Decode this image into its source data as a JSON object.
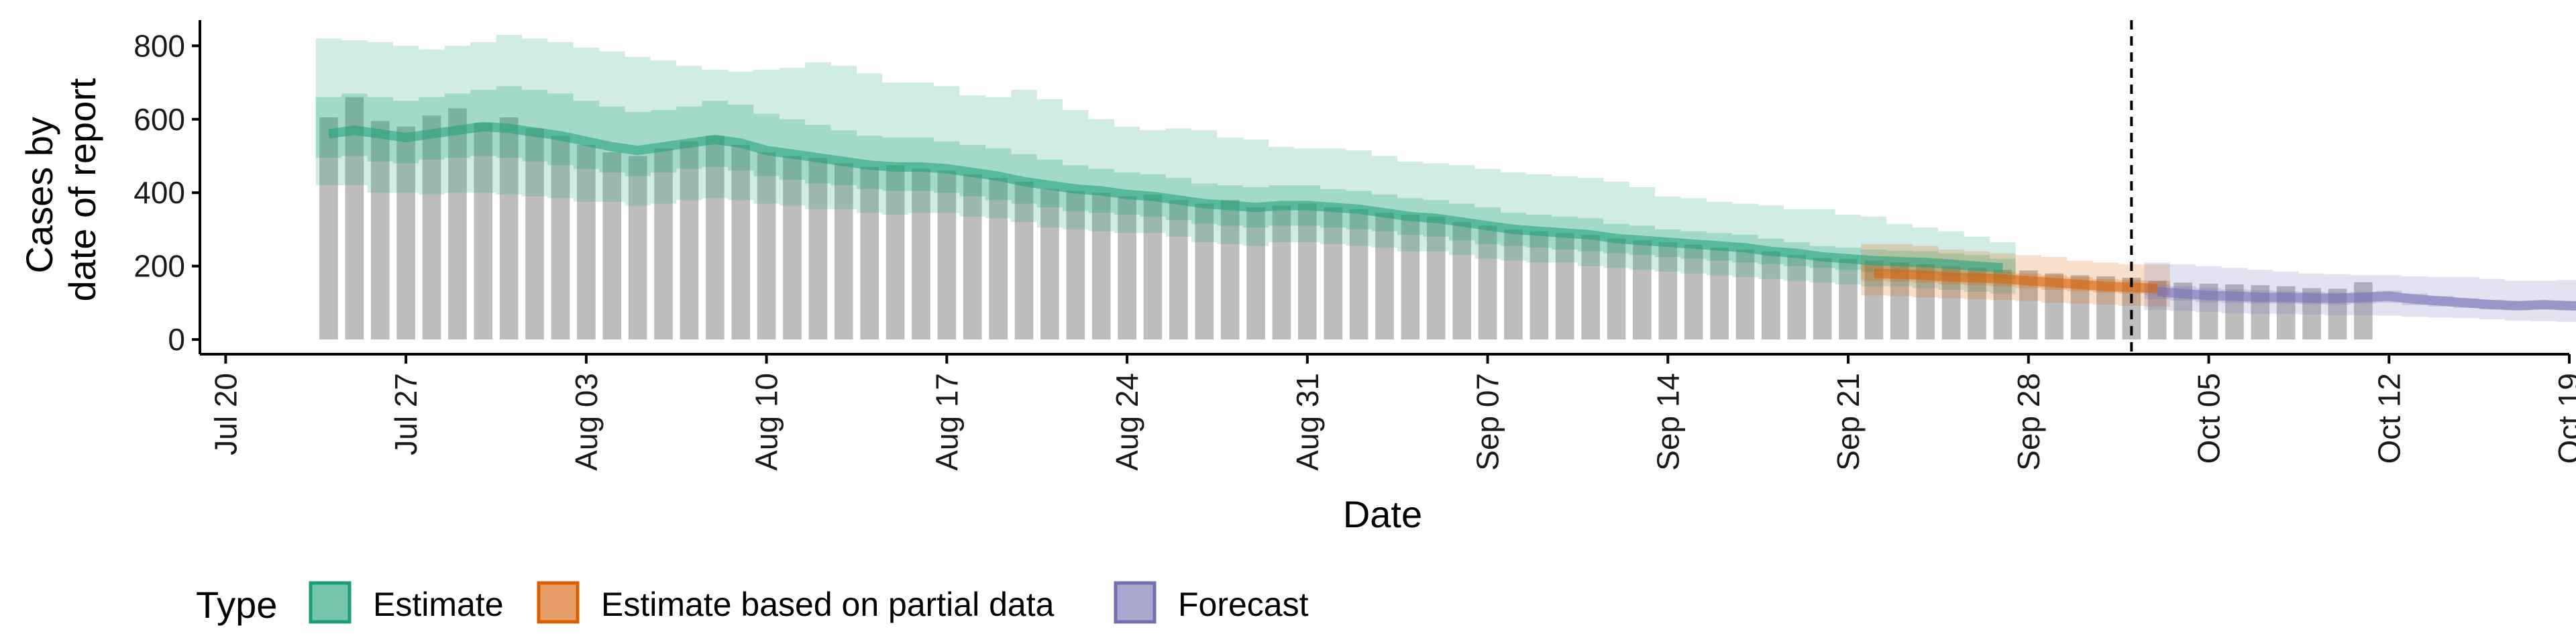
{
  "chart_data": {
    "type": "bar",
    "xlabel": "Date",
    "ylabel_lines": [
      "Cases by",
      "date of report"
    ],
    "xlim": [
      "2020-07-19",
      "2020-10-19"
    ],
    "ylim": [
      -40,
      870
    ],
    "y_ticks": [
      0,
      200,
      400,
      600,
      800
    ],
    "x_ticks": [
      {
        "date": "2020-07-20",
        "label": "Jul 20"
      },
      {
        "date": "2020-07-27",
        "label": "Jul 27"
      },
      {
        "date": "2020-08-03",
        "label": "Aug 03"
      },
      {
        "date": "2020-08-10",
        "label": "Aug 10"
      },
      {
        "date": "2020-08-17",
        "label": "Aug 17"
      },
      {
        "date": "2020-08-24",
        "label": "Aug 24"
      },
      {
        "date": "2020-08-31",
        "label": "Aug 31"
      },
      {
        "date": "2020-09-07",
        "label": "Sep 07"
      },
      {
        "date": "2020-09-14",
        "label": "Sep 14"
      },
      {
        "date": "2020-09-21",
        "label": "Sep 21"
      },
      {
        "date": "2020-09-28",
        "label": "Sep 28"
      },
      {
        "date": "2020-10-05",
        "label": "Oct 05"
      },
      {
        "date": "2020-10-12",
        "label": "Oct 12"
      },
      {
        "date": "2020-10-19",
        "label": "Oct 19"
      }
    ],
    "grid": false,
    "legend_position": "bottom",
    "legend": {
      "title": "Type",
      "items": [
        {
          "label": "Estimate",
          "fill": "#1b9e77"
        },
        {
          "label": "Estimate based on partial data",
          "fill": "#d95f02"
        },
        {
          "label": "Forecast",
          "fill": "#7570b3"
        }
      ]
    },
    "forecast_start_date": "2020-10-02",
    "bars": {
      "color": "#bdbdbd",
      "start_date": "2020-07-24",
      "values": [
        605,
        660,
        595,
        580,
        610,
        630,
        590,
        605,
        575,
        555,
        530,
        510,
        500,
        520,
        540,
        555,
        530,
        510,
        500,
        495,
        480,
        470,
        475,
        465,
        460,
        450,
        440,
        430,
        410,
        405,
        400,
        390,
        395,
        380,
        370,
        380,
        360,
        365,
        370,
        360,
        355,
        345,
        340,
        335,
        320,
        310,
        300,
        295,
        290,
        285,
        275,
        270,
        265,
        258,
        250,
        245,
        240,
        230,
        222,
        220,
        215,
        210,
        205,
        200,
        195,
        190,
        188,
        180,
        175,
        172,
        168,
        160,
        155,
        152,
        150,
        148,
        145,
        140,
        138,
        156
      ]
    },
    "series": [
      {
        "name": "Estimate",
        "color": "#1b9e77",
        "start_date": "2020-07-24",
        "median": [
          560,
          570,
          560,
          550,
          560,
          570,
          580,
          575,
          565,
          555,
          540,
          525,
          515,
          525,
          535,
          545,
          535,
          515,
          505,
          495,
          485,
          475,
          470,
          470,
          465,
          455,
          445,
          430,
          420,
          410,
          405,
          395,
          390,
          380,
          370,
          365,
          360,
          365,
          365,
          360,
          355,
          345,
          335,
          330,
          320,
          310,
          300,
          295,
          290,
          285,
          275,
          270,
          265,
          260,
          255,
          250,
          240,
          235,
          225,
          220,
          215,
          212,
          210,
          205,
          200,
          195
        ],
        "upper_90": [
          820,
          815,
          810,
          800,
          790,
          800,
          810,
          830,
          820,
          810,
          795,
          785,
          770,
          760,
          745,
          735,
          730,
          735,
          740,
          755,
          745,
          725,
          700,
          700,
          690,
          665,
          660,
          680,
          655,
          625,
          600,
          580,
          570,
          575,
          570,
          550,
          545,
          525,
          520,
          520,
          515,
          500,
          485,
          480,
          475,
          465,
          455,
          450,
          445,
          440,
          430,
          415,
          390,
          385,
          375,
          370,
          365,
          355,
          355,
          340,
          335,
          315,
          305,
          295,
          280,
          265
        ],
        "lower_90": [
          420,
          420,
          400,
          400,
          395,
          400,
          400,
          395,
          390,
          385,
          375,
          375,
          365,
          370,
          380,
          385,
          380,
          370,
          365,
          355,
          355,
          345,
          340,
          345,
          345,
          335,
          330,
          320,
          305,
          300,
          295,
          290,
          290,
          280,
          265,
          260,
          255,
          265,
          265,
          260,
          255,
          250,
          240,
          240,
          230,
          220,
          215,
          210,
          210,
          200,
          195,
          190,
          185,
          180,
          175,
          170,
          165,
          160,
          155,
          150,
          145,
          145,
          140,
          135,
          130,
          125
        ],
        "upper_50": [
          660,
          670,
          660,
          650,
          660,
          670,
          680,
          690,
          680,
          670,
          650,
          635,
          620,
          625,
          635,
          650,
          640,
          615,
          600,
          585,
          570,
          555,
          550,
          550,
          540,
          530,
          520,
          505,
          490,
          475,
          465,
          455,
          450,
          440,
          425,
          420,
          415,
          420,
          420,
          410,
          405,
          395,
          385,
          380,
          370,
          360,
          345,
          340,
          335,
          330,
          315,
          310,
          300,
          295,
          290,
          285,
          275,
          265,
          255,
          250,
          245,
          242,
          240,
          235,
          230,
          220
        ],
        "lower_50": [
          495,
          500,
          485,
          480,
          490,
          495,
          500,
          495,
          485,
          475,
          465,
          455,
          445,
          455,
          465,
          470,
          460,
          445,
          435,
          425,
          420,
          410,
          405,
          405,
          400,
          390,
          380,
          370,
          360,
          350,
          345,
          340,
          335,
          325,
          315,
          310,
          305,
          310,
          310,
          305,
          300,
          295,
          285,
          280,
          270,
          260,
          255,
          250,
          245,
          240,
          235,
          230,
          225,
          220,
          215,
          210,
          205,
          200,
          195,
          190,
          185,
          182,
          180,
          175,
          170,
          165
        ]
      },
      {
        "name": "Estimate based on partial data",
        "color": "#d95f02",
        "start_date": "2020-09-22",
        "median": [
          180,
          178,
          175,
          170,
          168,
          165,
          160,
          155,
          150,
          145,
          142,
          140
        ],
        "upper_90": [
          260,
          260,
          255,
          245,
          240,
          235,
          230,
          225,
          215,
          210,
          205,
          205
        ],
        "lower_90": [
          120,
          118,
          115,
          112,
          110,
          108,
          105,
          100,
          98,
          95,
          92,
          90
        ],
        "upper_50": [
          205,
          205,
          200,
          195,
          190,
          185,
          180,
          175,
          170,
          165,
          162,
          160
        ],
        "lower_50": [
          160,
          158,
          155,
          150,
          148,
          145,
          140,
          135,
          132,
          128,
          125,
          122
        ]
      },
      {
        "name": "Forecast",
        "color": "#7570b3",
        "start_date": "2020-10-03",
        "median": [
          130,
          125,
          120,
          118,
          115,
          115,
          113,
          112,
          115,
          118,
          110,
          105,
          100,
          95,
          92,
          95,
          92,
          90,
          90,
          90
        ],
        "upper_90": [
          210,
          205,
          200,
          195,
          190,
          185,
          180,
          178,
          175,
          175,
          172,
          170,
          170,
          165,
          160,
          160,
          162,
          165,
          170,
          175
        ],
        "lower_90": [
          80,
          78,
          75,
          72,
          70,
          70,
          68,
          66,
          66,
          65,
          62,
          60,
          58,
          55,
          52,
          50,
          48,
          46,
          45,
          45
        ],
        "upper_50": [
          150,
          145,
          140,
          137,
          134,
          132,
          130,
          128,
          130,
          133,
          125,
          118,
          112,
          108,
          105,
          106,
          105,
          104,
          104,
          104
        ],
        "lower_50": [
          110,
          106,
          102,
          100,
          98,
          98,
          96,
          95,
          98,
          100,
          94,
          90,
          86,
          82,
          80,
          82,
          80,
          78,
          77,
          76
        ]
      }
    ]
  }
}
